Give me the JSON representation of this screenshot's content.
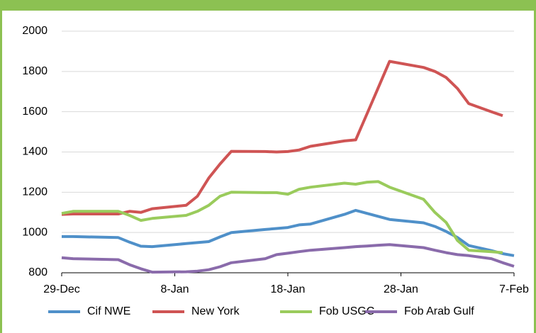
{
  "chart_data": {
    "type": "line",
    "x": [
      "29-Dec",
      "30-Dec",
      "3-Jan",
      "4-Jan",
      "5-Jan",
      "6-Jan",
      "9-Jan",
      "10-Jan",
      "11-Jan",
      "12-Jan",
      "13-Jan",
      "16-Jan",
      "17-Jan",
      "18-Jan",
      "19-Jan",
      "20-Jan",
      "23-Jan",
      "24-Jan",
      "25-Jan",
      "26-Jan",
      "27-Jan",
      "30-Jan",
      "31-Jan",
      "1-Feb",
      "2-Feb",
      "3-Feb",
      "5-Feb",
      "6-Feb",
      "7-Feb"
    ],
    "series": [
      {
        "name": "Cif NWE",
        "color": "#4f90c9",
        "values": [
          980,
          980,
          975,
          952,
          932,
          930,
          945,
          950,
          955,
          978,
          1000,
          1015,
          1020,
          1025,
          1038,
          1042,
          1090,
          1110,
          1095,
          1080,
          1065,
          1048,
          1030,
          1005,
          975,
          935,
          910,
          895,
          885
        ]
      },
      {
        "name": "New York",
        "color": "#cf5454",
        "values": [
          1090,
          1092,
          1092,
          1105,
          1100,
          1118,
          1135,
          1180,
          1270,
          1340,
          1403,
          1402,
          1400,
          1402,
          1410,
          1428,
          1455,
          1460,
          1590,
          1720,
          1850,
          1820,
          1800,
          1770,
          1715,
          1640,
          1600,
          1580,
          null
        ]
      },
      {
        "name": "Fob USGC",
        "color": "#9acb5c",
        "values": [
          1095,
          1105,
          1105,
          1085,
          1060,
          1070,
          1085,
          1105,
          1135,
          1180,
          1200,
          1198,
          1198,
          1190,
          1215,
          1225,
          1245,
          1240,
          1250,
          1253,
          1225,
          1165,
          1100,
          1050,
          960,
          912,
          905,
          900,
          null
        ]
      },
      {
        "name": "Fob Arab Gulf",
        "color": "#8a6bab",
        "values": [
          875,
          870,
          865,
          840,
          820,
          803,
          805,
          808,
          815,
          830,
          850,
          870,
          890,
          897,
          905,
          912,
          925,
          930,
          933,
          937,
          940,
          925,
          912,
          900,
          890,
          885,
          870,
          850,
          832
        ]
      }
    ],
    "xlim": [
      "29-Dec",
      "7-Feb"
    ],
    "xticks": [
      "29-Dec",
      "8-Jan",
      "18-Jan",
      "28-Jan",
      "7-Feb"
    ],
    "ylim": [
      800,
      2000
    ],
    "yticks": [
      800,
      1000,
      1200,
      1400,
      1600,
      1800,
      2000
    ],
    "grid": true
  }
}
